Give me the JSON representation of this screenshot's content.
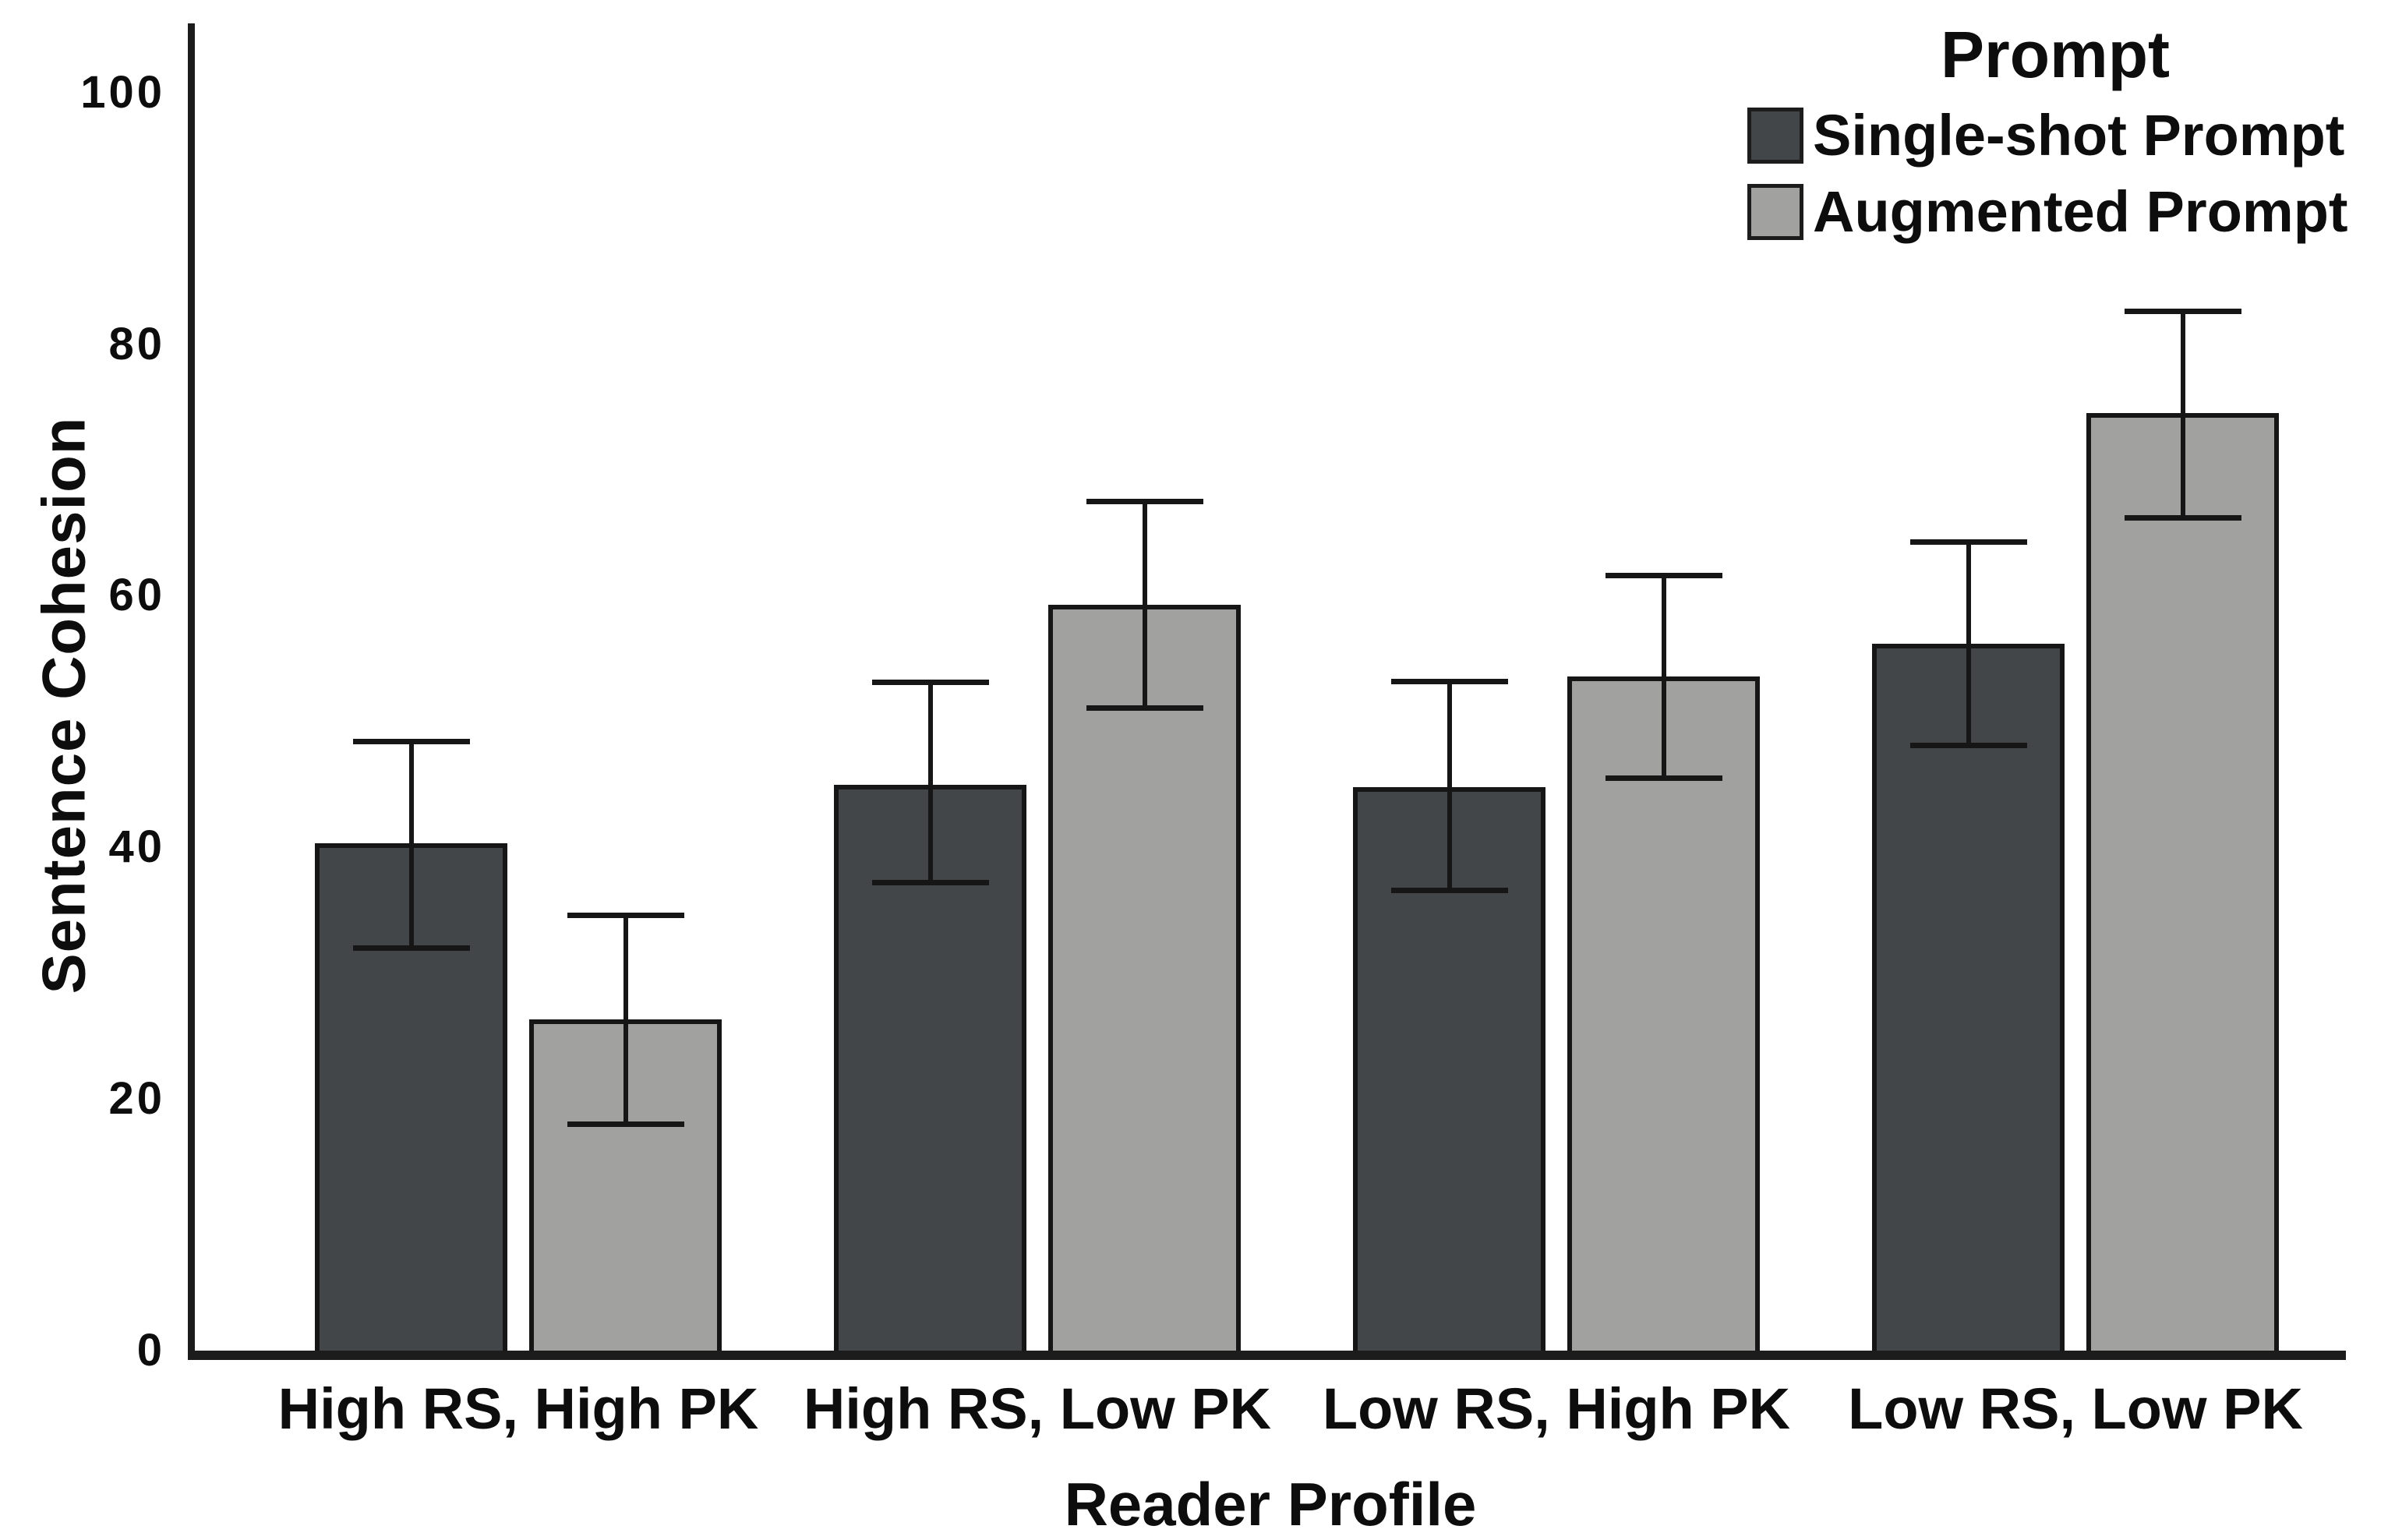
{
  "chart_data": {
    "type": "bar",
    "title": "",
    "xlabel": "Reader Profile",
    "ylabel": "Sentence Cohesion",
    "ylim": [
      0,
      100
    ],
    "yticks": [
      0,
      20,
      40,
      60,
      80,
      100
    ],
    "grid": false,
    "error_bars": true,
    "legend": {
      "title": "Prompt",
      "position": "top-right"
    },
    "categories": [
      "High RS, High PK",
      "High RS, Low PK",
      "Low RS, High PK",
      "Low RS, Low PK"
    ],
    "series": [
      {
        "name": "Single-shot Prompt",
        "color": "#424649",
        "values": [
          40.3,
          45.0,
          44.8,
          56.2
        ],
        "error_low": [
          32.0,
          37.2,
          36.6,
          48.1
        ],
        "error_high": [
          48.4,
          53.1,
          53.2,
          64.3
        ]
      },
      {
        "name": "Augmented Prompt",
        "color": "#A1A19F",
        "values": [
          26.3,
          59.3,
          53.6,
          74.5
        ],
        "error_low": [
          18.0,
          51.1,
          45.5,
          66.2
        ],
        "error_high": [
          34.6,
          67.5,
          61.6,
          82.6
        ]
      }
    ],
    "colors": {
      "axis": "#1c1c1c",
      "text": "#0d0d0d",
      "background": "#ffffff"
    }
  }
}
